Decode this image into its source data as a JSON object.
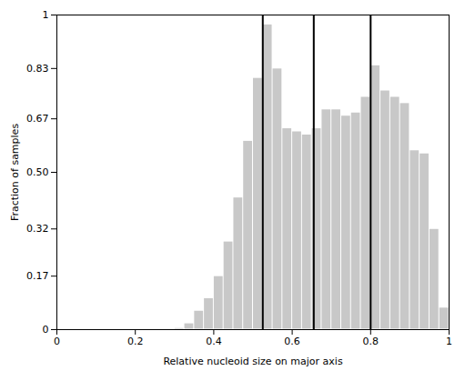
{
  "chart_data": {
    "type": "histogram",
    "xlabel": "Relative nucleoid size on major axis",
    "ylabel": "Fraction of samples",
    "bins": [
      0.3,
      0.325,
      0.35,
      0.375,
      0.4,
      0.425,
      0.45,
      0.475,
      0.5,
      0.525,
      0.55,
      0.575,
      0.6,
      0.625,
      0.65,
      0.675,
      0.7,
      0.725,
      0.75,
      0.775,
      0.8,
      0.825,
      0.85,
      0.875,
      0.9,
      0.925,
      0.95,
      0.975,
      1.0
    ],
    "values": [
      0.005,
      0.02,
      0.06,
      0.1,
      0.17,
      0.28,
      0.42,
      0.6,
      0.8,
      0.97,
      0.83,
      0.64,
      0.63,
      0.62,
      0.64,
      0.7,
      0.7,
      0.68,
      0.69,
      0.74,
      0.84,
      0.76,
      0.74,
      0.72,
      0.57,
      0.56,
      0.32,
      0.07
    ],
    "color": "#c8c8c8",
    "vlines": {
      "values": [
        0.525,
        0.655,
        0.8
      ],
      "color": "#000000"
    },
    "xlim": [
      0,
      1.0
    ],
    "ylim": [
      0,
      1.0
    ],
    "xticks": [
      0,
      0.2,
      0.4,
      0.6,
      0.8,
      1
    ],
    "yticks": [
      0,
      0.17,
      0.32,
      {
        "value": 0.5,
        "label": "0.50"
      },
      0.67,
      0.83,
      1
    ],
    "grid": false
  }
}
